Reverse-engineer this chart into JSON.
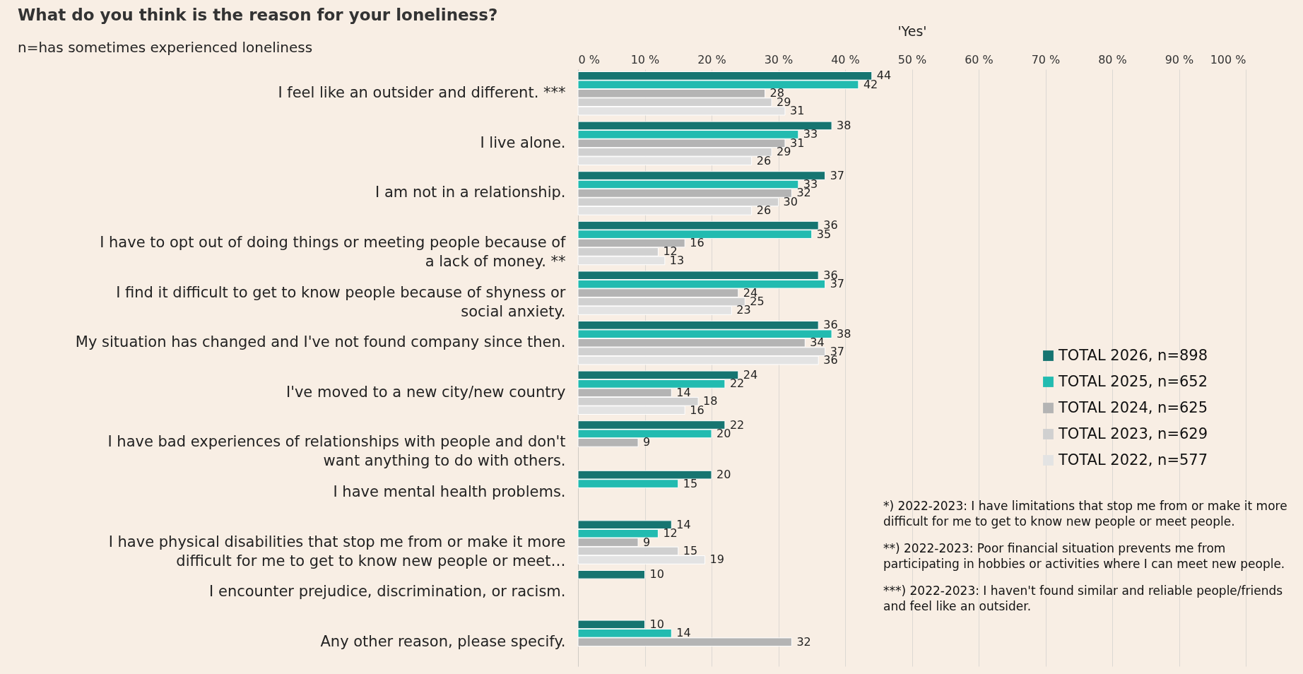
{
  "chart_data": {
    "type": "bar",
    "orientation": "horizontal",
    "title": "What do you think is the reason for your loneliness?",
    "subtitle": "n=has sometimes experienced loneliness",
    "xlabel": "'Yes'",
    "categories": [
      "I feel like an outsider and different. ***",
      "I live alone.",
      "I am not in a relationship.",
      "I have to opt out of doing things or meeting people because of a lack of money. **",
      "I find it difficult to get to know people because of shyness or social anxiety.",
      "My situation has changed and I've not found company since then.",
      "I've moved to a new city/new country",
      "I have bad experiences of relationships with people and don't want anything to do with others.",
      "I have mental health problems.",
      "I have physical disabilities that stop me from or make it more difficult for me to get to know new people or meet…",
      "I encounter prejudice, discrimination, or racism.",
      "Any other reason, please specify."
    ],
    "series": [
      {
        "name": "TOTAL 2026, n=898",
        "color": "#167571",
        "values": [
          44,
          38,
          37,
          36,
          36,
          36,
          24,
          22,
          20,
          14,
          10,
          10
        ]
      },
      {
        "name": "TOTAL 2025, n=652",
        "color": "#22bbb0",
        "values": [
          42,
          33,
          33,
          35,
          37,
          38,
          22,
          20,
          15,
          12,
          null,
          14
        ]
      },
      {
        "name": "TOTAL 2024, n=625",
        "color": "#b4b4b4",
        "values": [
          28,
          31,
          32,
          16,
          24,
          34,
          14,
          9,
          null,
          9,
          null,
          32
        ]
      },
      {
        "name": "TOTAL 2023, n=629",
        "color": "#d0d0d0",
        "values": [
          29,
          29,
          30,
          12,
          25,
          37,
          18,
          null,
          null,
          15,
          null,
          null
        ]
      },
      {
        "name": "TOTAL 2022, n=577",
        "color": "#e3e3e3",
        "values": [
          31,
          26,
          26,
          13,
          23,
          36,
          16,
          null,
          null,
          19,
          null,
          null
        ]
      }
    ],
    "xlim": [
      0,
      100
    ],
    "xticks": [
      {
        "value": 0,
        "label": "0 %"
      },
      {
        "value": 10,
        "label": "10 %"
      },
      {
        "value": 20,
        "label": "20 %"
      },
      {
        "value": 30,
        "label": "30 %"
      },
      {
        "value": 40,
        "label": "40 %"
      },
      {
        "value": 50,
        "label": "50 %"
      },
      {
        "value": 60,
        "label": "60 %"
      },
      {
        "value": 70,
        "label": "70 %"
      },
      {
        "value": 80,
        "label": "80 %"
      },
      {
        "value": 90,
        "label": "90 %"
      },
      {
        "value": 100,
        "label": "100 %"
      }
    ],
    "grid": "x",
    "legend": "right",
    "data_labels": true,
    "annotations": [
      "*) 2022-2023: I have limitations that stop me from or make it more difficult for me to get to know new people or meet people.",
      "**) 2022-2023: Poor financial situation prevents me from participating in hobbies or activities where I can meet new people.",
      "***) 2022-2023: I haven't found similar and reliable people/friends and feel like an outsider."
    ]
  }
}
